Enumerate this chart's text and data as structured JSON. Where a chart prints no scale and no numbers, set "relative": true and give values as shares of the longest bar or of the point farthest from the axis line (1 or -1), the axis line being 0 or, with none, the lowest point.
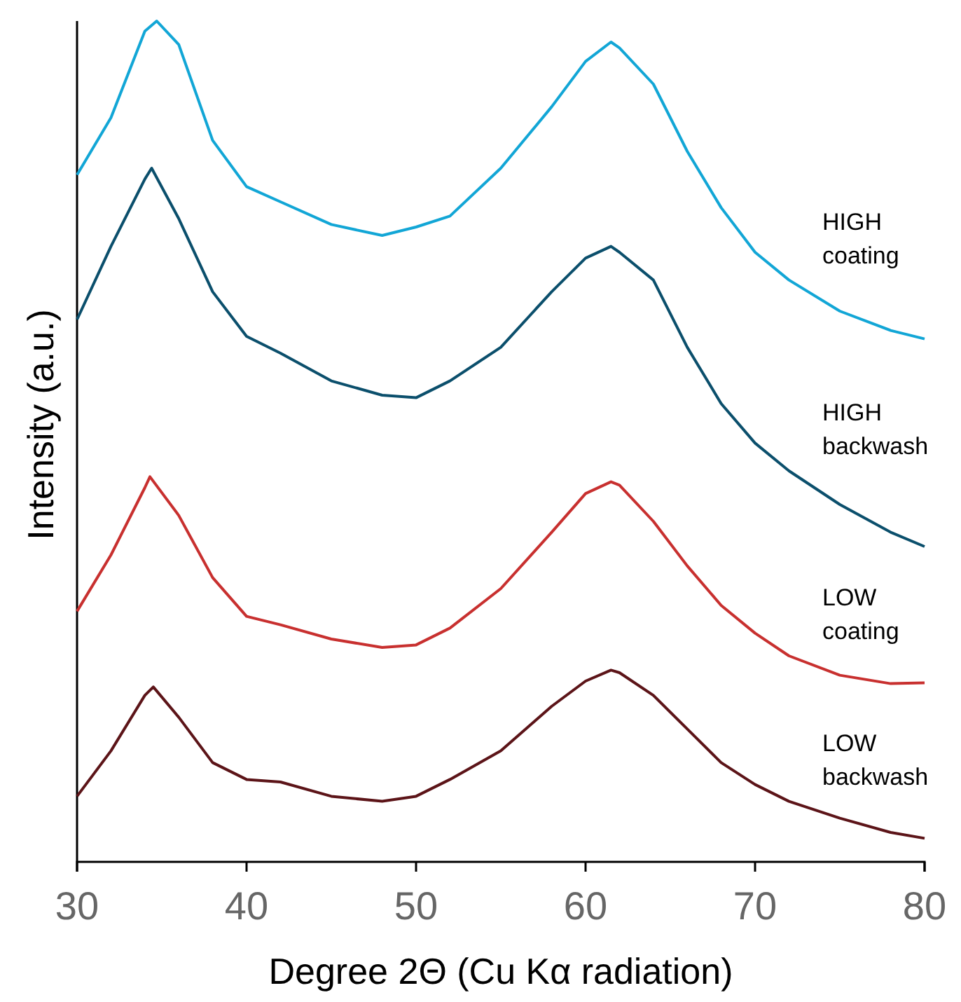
{
  "chart_data": {
    "type": "line",
    "relative": true,
    "xlabel": "Degree 2Θ (Cu Kα radiation)",
    "ylabel": "Intensity (a.u.)",
    "xlim": [
      30,
      80
    ],
    "xticks": [
      30,
      40,
      50,
      60,
      70,
      80
    ],
    "tick_labels": "x",
    "grid": false,
    "legend": false,
    "marker": "none",
    "line_style": "solid",
    "series": [
      {
        "name": "HIGH coating",
        "color": "#12a6d6",
        "x": [
          30,
          32,
          34,
          34.7,
          36,
          38,
          40,
          42,
          45,
          48,
          50,
          52,
          55,
          58,
          60,
          61.5,
          62,
          64,
          66,
          68,
          70,
          72,
          75,
          78,
          80
        ],
        "values": [
          0.817,
          0.885,
          0.988,
          1.0,
          0.972,
          0.858,
          0.803,
          0.785,
          0.758,
          0.745,
          0.755,
          0.768,
          0.825,
          0.898,
          0.952,
          0.975,
          0.968,
          0.925,
          0.845,
          0.778,
          0.725,
          0.692,
          0.655,
          0.632,
          0.622
        ]
      },
      {
        "name": "HIGH backwash",
        "color": "#0b4f6c",
        "x": [
          30,
          32,
          34,
          34.4,
          36,
          38,
          40,
          42,
          45,
          48,
          50,
          52,
          55,
          58,
          60,
          61.5,
          62,
          64,
          66,
          68,
          70,
          72,
          75,
          78,
          80
        ],
        "values": [
          0.645,
          0.732,
          0.812,
          0.825,
          0.765,
          0.678,
          0.625,
          0.605,
          0.572,
          0.555,
          0.552,
          0.572,
          0.612,
          0.678,
          0.718,
          0.732,
          0.725,
          0.692,
          0.612,
          0.545,
          0.498,
          0.465,
          0.425,
          0.392,
          0.375
        ]
      },
      {
        "name": "LOW coating",
        "color": "#c8302f",
        "x": [
          30,
          32,
          34,
          34.3,
          36,
          38,
          40,
          42,
          45,
          48,
          50,
          52,
          55,
          58,
          60,
          61.5,
          62,
          64,
          66,
          68,
          70,
          72,
          75,
          78,
          80
        ],
        "values": [
          0.298,
          0.365,
          0.445,
          0.458,
          0.412,
          0.338,
          0.292,
          0.282,
          0.265,
          0.255,
          0.258,
          0.278,
          0.325,
          0.392,
          0.438,
          0.452,
          0.448,
          0.405,
          0.352,
          0.305,
          0.272,
          0.245,
          0.222,
          0.212,
          0.213
        ]
      },
      {
        "name": "LOW backwash",
        "color": "#5c1418",
        "x": [
          30,
          32,
          34,
          34.5,
          36,
          38,
          40,
          42,
          45,
          48,
          50,
          52,
          55,
          58,
          60,
          61.5,
          62,
          64,
          66,
          68,
          70,
          72,
          75,
          78,
          80
        ],
        "values": [
          0.078,
          0.132,
          0.198,
          0.208,
          0.172,
          0.118,
          0.098,
          0.095,
          0.078,
          0.072,
          0.078,
          0.098,
          0.132,
          0.185,
          0.215,
          0.228,
          0.225,
          0.198,
          0.158,
          0.118,
          0.092,
          0.072,
          0.052,
          0.035,
          0.028
        ]
      }
    ]
  }
}
